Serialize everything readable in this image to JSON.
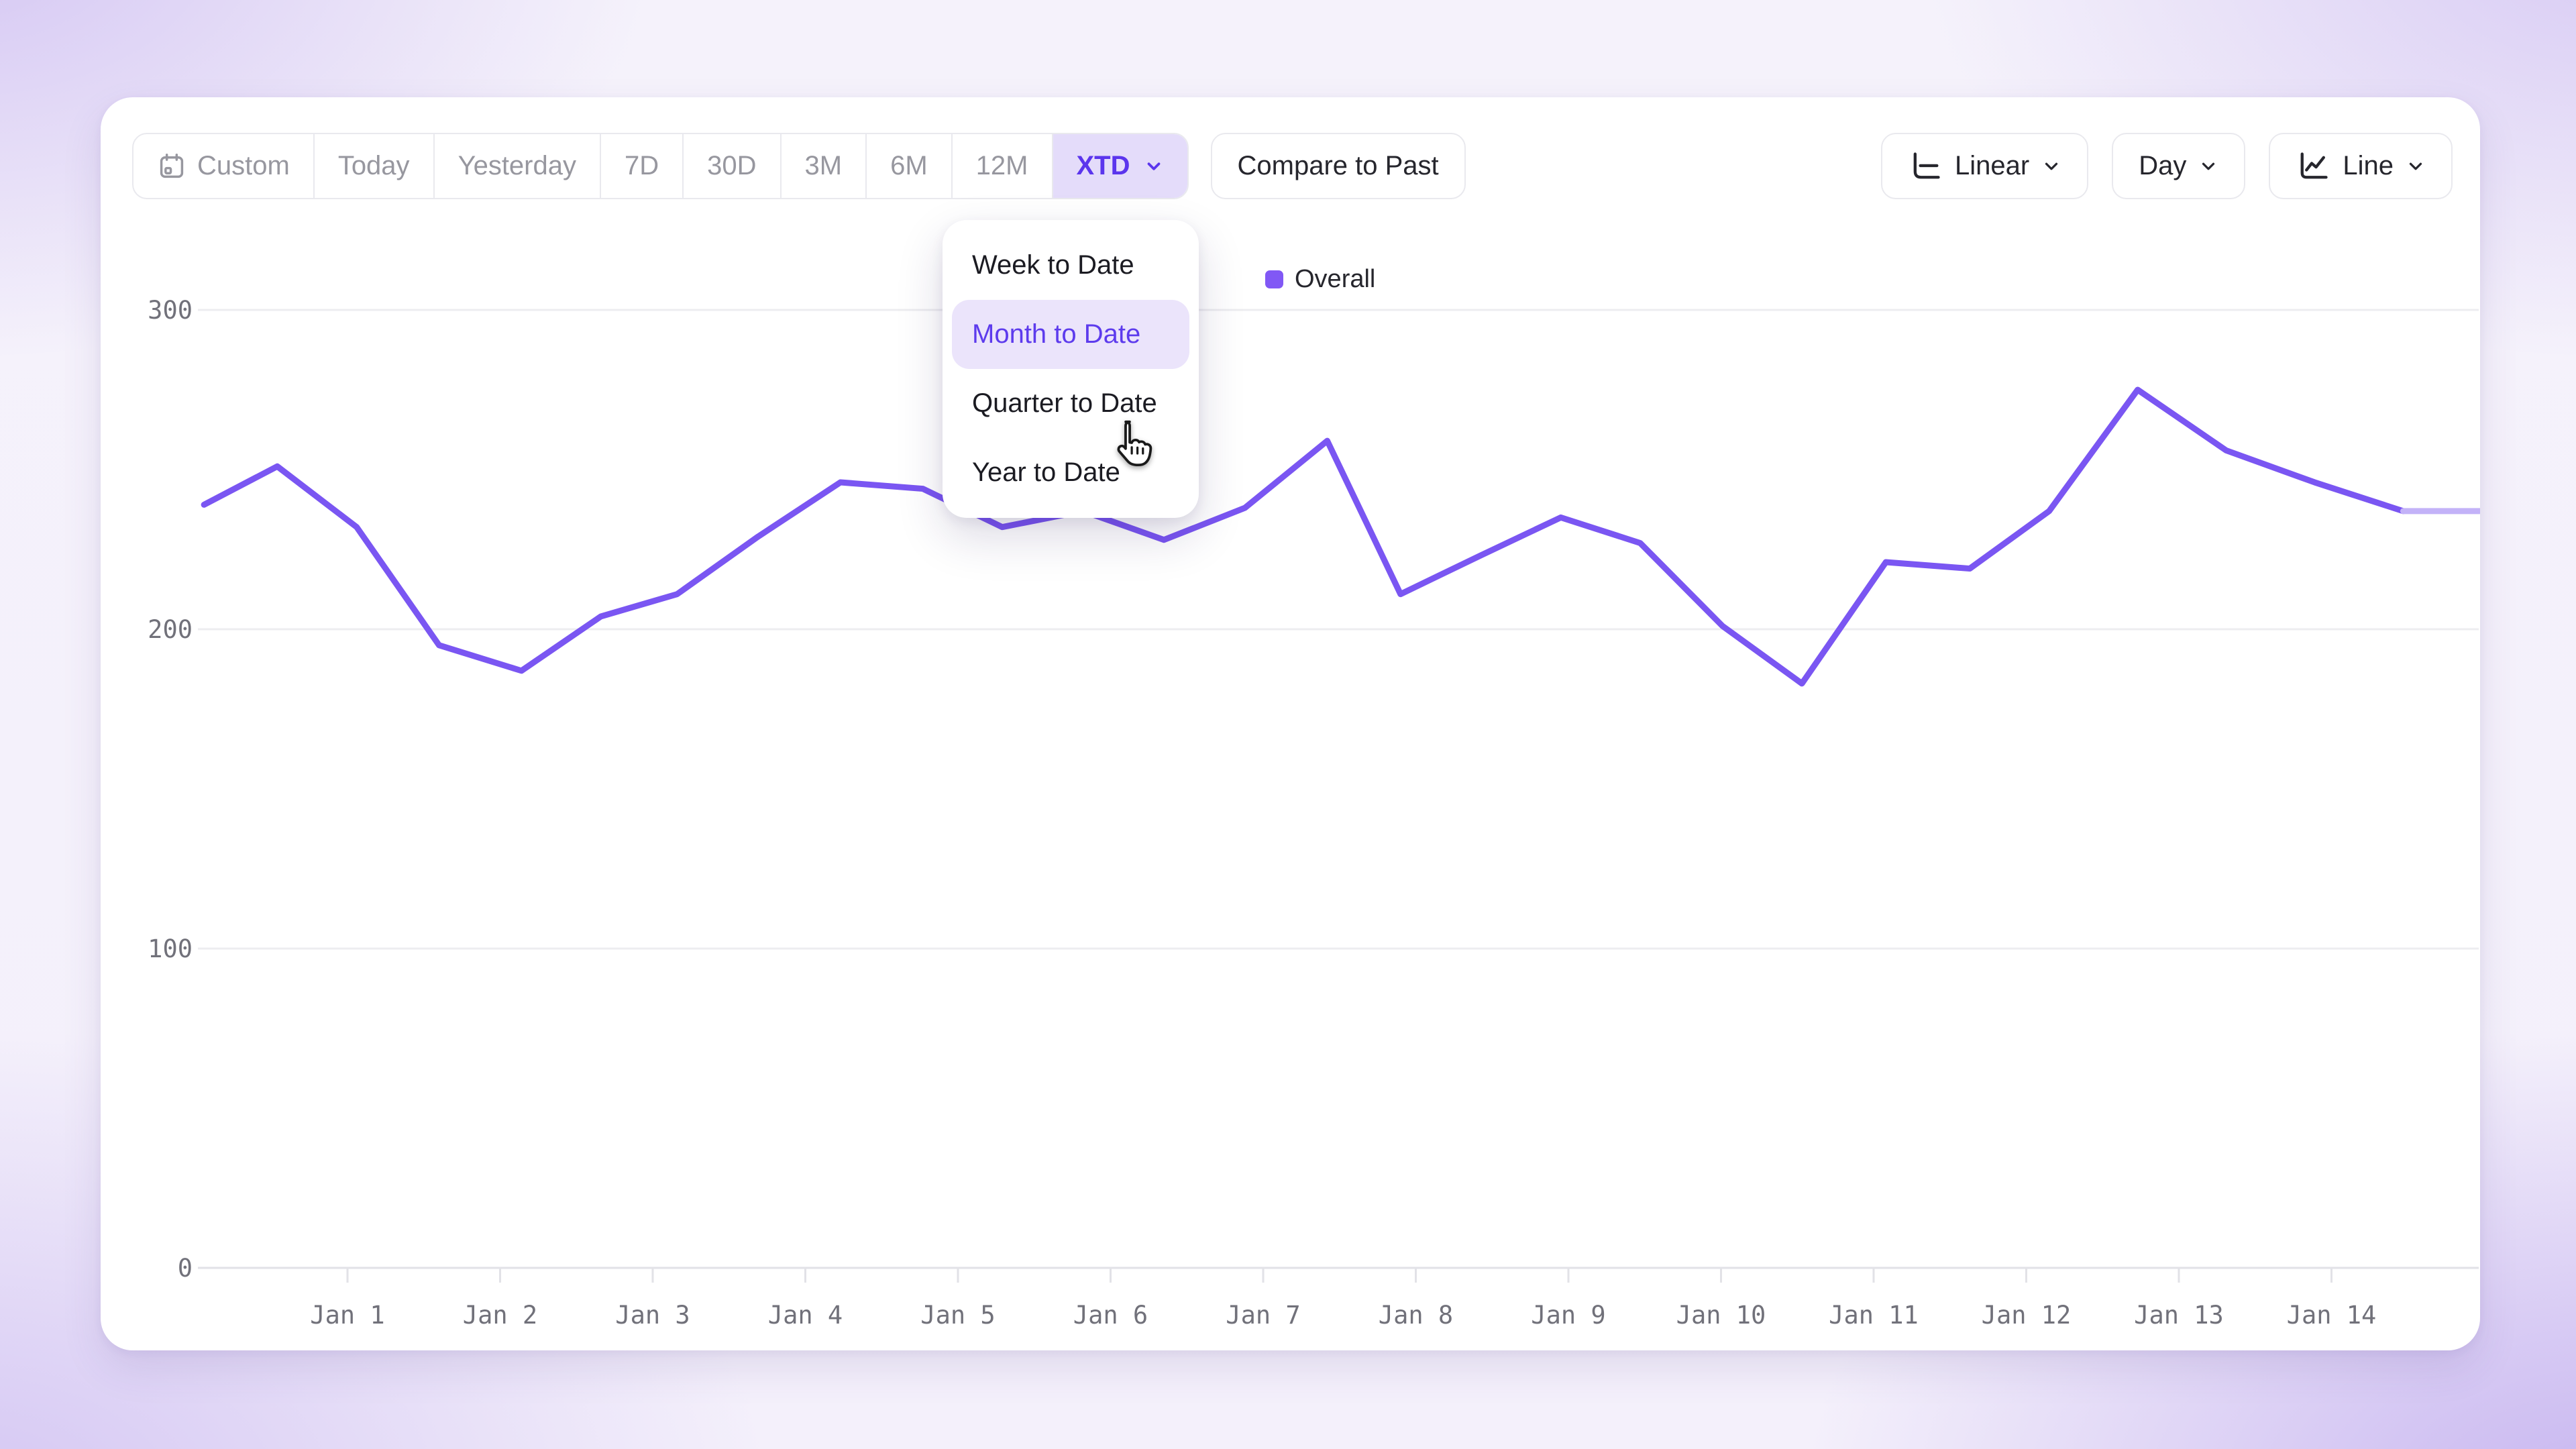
{
  "toolbar": {
    "ranges": [
      "Custom",
      "Today",
      "Yesterday",
      "7D",
      "30D",
      "3M",
      "6M",
      "12M"
    ],
    "xtd_label": "XTD",
    "compare_label": "Compare to Past",
    "scale_label": "Linear",
    "granularity_label": "Day",
    "chart_type_label": "Line"
  },
  "dropdown": {
    "items": [
      "Week to Date",
      "Month to Date",
      "Quarter to Date",
      "Year to Date"
    ],
    "selected": "Month to Date"
  },
  "legend": {
    "series": "Overall",
    "color": "#8158f5"
  },
  "colors": {
    "line": "#7a56f2",
    "line_partial_tail": "#c3b2f8",
    "active_pill_bg": "#e4dcfa",
    "active_pill_text": "#5b35ed",
    "gridline": "#ededf0",
    "axis": "#e2e2e7",
    "axis_text": "#71717a"
  },
  "chart_data": {
    "type": "line",
    "title": "",
    "xlabel": "",
    "ylabel": "",
    "ylim": [
      0,
      300
    ],
    "y_ticks": [
      0,
      100,
      200,
      300
    ],
    "x_tick_labels": [
      "Jan 1",
      "Jan 2",
      "Jan 3",
      "Jan 4",
      "Jan 5",
      "Jan 6",
      "Jan 7",
      "Jan 8",
      "Jan 9",
      "Jan 10",
      "Jan 11",
      "Jan 12",
      "Jan 13",
      "Jan 14"
    ],
    "grid": "horizontal",
    "legend_position": "top-center",
    "x_unit": "days offset from Jan 1 (fractional, ~half-day sampling)",
    "partial_tail_from_index": 27,
    "series": [
      {
        "name": "Overall",
        "points": [
          [
            0.06,
            239
          ],
          [
            0.54,
            251
          ],
          [
            1.06,
            232
          ],
          [
            1.6,
            195
          ],
          [
            2.14,
            187
          ],
          [
            2.66,
            204
          ],
          [
            3.16,
            211
          ],
          [
            3.69,
            229
          ],
          [
            4.23,
            246
          ],
          [
            4.77,
            244
          ],
          [
            5.29,
            232
          ],
          [
            5.82,
            237
          ],
          [
            6.35,
            228
          ],
          [
            6.88,
            238
          ],
          [
            7.42,
            259
          ],
          [
            7.9,
            211
          ],
          [
            8.42,
            223
          ],
          [
            8.95,
            235
          ],
          [
            9.47,
            227
          ],
          [
            10.01,
            201
          ],
          [
            10.53,
            183
          ],
          [
            11.08,
            221
          ],
          [
            11.63,
            219
          ],
          [
            12.15,
            237
          ],
          [
            12.73,
            275
          ],
          [
            13.31,
            256
          ],
          [
            13.89,
            246
          ],
          [
            14.47,
            237
          ],
          [
            14.97,
            237
          ]
        ]
      }
    ]
  }
}
